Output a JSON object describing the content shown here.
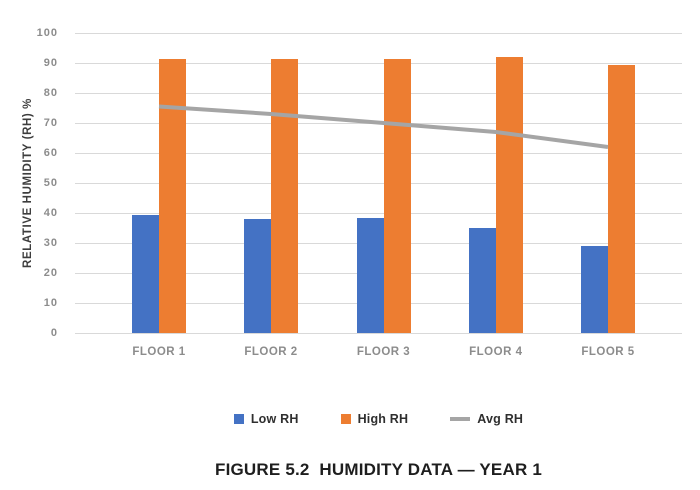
{
  "chart_data": {
    "type": "bar",
    "title": "FIGURE 5.2  HUMIDITY DATA — YEAR 1",
    "ylabel": "RELATIVE HUMIDITY (RH) %",
    "xlabel": "",
    "categories": [
      "FLOOR 1",
      "FLOOR 2",
      "FLOOR 3",
      "FLOOR 4",
      "FLOOR 5"
    ],
    "series": [
      {
        "name": "Low RH",
        "type": "bar",
        "color": "#4472C4",
        "values": [
          39.5,
          38,
          38.5,
          35,
          29
        ]
      },
      {
        "name": "High RH",
        "type": "bar",
        "color": "#ED7D31",
        "values": [
          91.5,
          91.5,
          91.5,
          92,
          89.5
        ]
      },
      {
        "name": "Avg RH",
        "type": "line",
        "color": "#A5A5A5",
        "values": [
          75.5,
          73,
          70,
          67,
          62
        ]
      }
    ],
    "ylim": [
      0,
      100
    ],
    "ytick_step": 10,
    "grid": true,
    "legend_position": "bottom",
    "gridline_color": "#D9D9D9",
    "tick_label_color": "#8C8C8C"
  }
}
